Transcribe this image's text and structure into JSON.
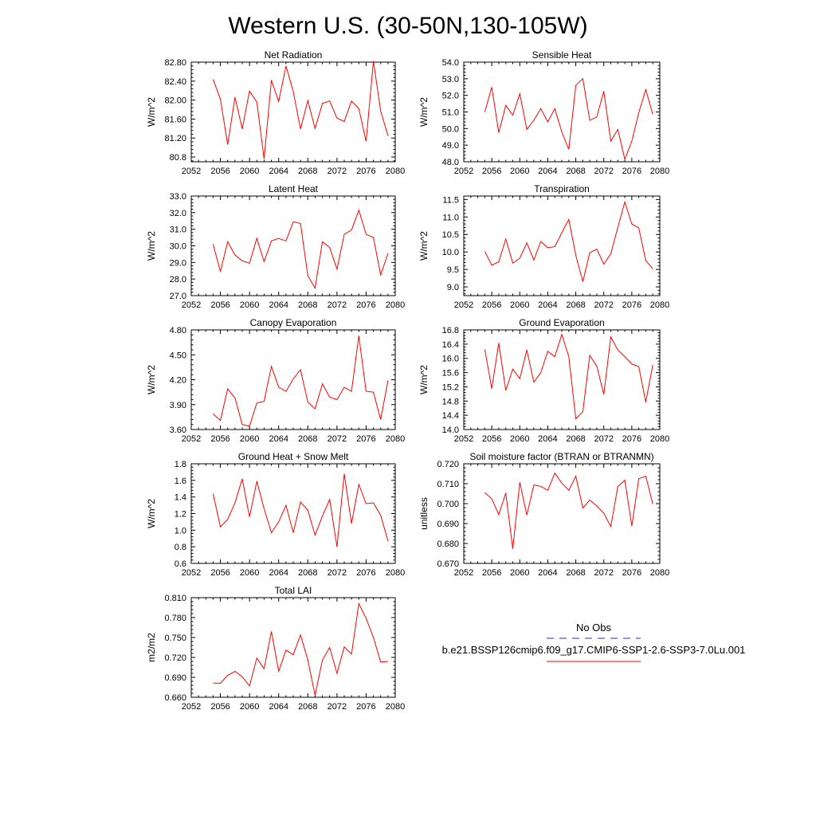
{
  "figure": {
    "title": "Western U.S. (30-50N,130-105W)",
    "line_color": "#ff0000",
    "obs_color": "#2b2bb0"
  },
  "legend": {
    "items": [
      {
        "label": "No Obs",
        "style": "dashed",
        "color": "#2b2bb0"
      },
      {
        "label": "b.e21.BSSP126cmip6.f09_g17.CMIP6-SSP1-2.6-SSP3-7.0Lu.001",
        "style": "solid",
        "color": "#ff0000"
      }
    ]
  },
  "chart_data": [
    {
      "type": "line",
      "title": "Net Radiation",
      "xlabel": "",
      "ylabel": "W/m^2",
      "xlim": [
        2052,
        2080
      ],
      "ylim": [
        80.7,
        82.8
      ],
      "xticks": [
        "2052",
        "2056",
        "2060",
        "2064",
        "2068",
        "2072",
        "2076",
        "2080"
      ],
      "yticks": [
        "80.8",
        "81.20",
        "81.60",
        "82.00",
        "82.40",
        "82.80"
      ],
      "series": [
        {
          "x": [
            2055,
            2056,
            2057,
            2058,
            2059,
            2060,
            2061,
            2062,
            2063,
            2064,
            2065,
            2066,
            2067,
            2068,
            2069,
            2070,
            2071,
            2072,
            2073,
            2074,
            2075,
            2076,
            2077,
            2078,
            2079
          ],
          "values": [
            82.44,
            82.02,
            81.06,
            82.06,
            81.39,
            82.19,
            81.96,
            80.76,
            82.42,
            81.97,
            82.72,
            82.18,
            81.39,
            81.99,
            81.4,
            81.93,
            81.98,
            81.62,
            81.55,
            81.98,
            81.82,
            81.13,
            82.82,
            81.77,
            81.25
          ]
        }
      ]
    },
    {
      "type": "line",
      "title": "Sensible Heat",
      "xlabel": "",
      "ylabel": "W/m^2",
      "xlim": [
        2052,
        2080
      ],
      "ylim": [
        48.0,
        54.0
      ],
      "xticks": [
        "2052",
        "2056",
        "2060",
        "2064",
        "2068",
        "2072",
        "2076",
        "2080"
      ],
      "yticks": [
        "48.0",
        "49.0",
        "50.0",
        "51.0",
        "52.0",
        "53.0",
        "54.0"
      ],
      "series": [
        {
          "x": [
            2055,
            2056,
            2057,
            2058,
            2059,
            2060,
            2061,
            2062,
            2063,
            2064,
            2065,
            2066,
            2067,
            2068,
            2069,
            2070,
            2071,
            2072,
            2073,
            2074,
            2075,
            2076,
            2077,
            2078,
            2079
          ],
          "values": [
            51.0,
            52.5,
            49.75,
            51.4,
            50.8,
            52.1,
            49.95,
            50.5,
            51.2,
            50.4,
            51.2,
            49.8,
            48.75,
            52.6,
            53.0,
            50.5,
            50.7,
            52.25,
            49.25,
            49.95,
            48.15,
            49.25,
            50.95,
            52.35,
            50.85
          ]
        }
      ]
    },
    {
      "type": "line",
      "title": "Latent Heat",
      "xlabel": "",
      "ylabel": "W/m^2",
      "xlim": [
        2052,
        2080
      ],
      "ylim": [
        27.0,
        33.0
      ],
      "xticks": [
        "2052",
        "2056",
        "2060",
        "2064",
        "2068",
        "2072",
        "2076",
        "2080"
      ],
      "yticks": [
        "27.0",
        "28.0",
        "29.0",
        "30.0",
        "31.0",
        "32.0",
        "33.0"
      ],
      "series": [
        {
          "x": [
            2055,
            2056,
            2057,
            2058,
            2059,
            2060,
            2061,
            2062,
            2063,
            2064,
            2065,
            2066,
            2067,
            2068,
            2069,
            2070,
            2071,
            2072,
            2073,
            2074,
            2075,
            2076,
            2077,
            2078,
            2079
          ],
          "values": [
            30.1,
            28.45,
            30.25,
            29.45,
            29.1,
            28.95,
            30.45,
            29.05,
            30.3,
            30.45,
            30.3,
            31.45,
            31.35,
            28.2,
            27.45,
            30.25,
            29.9,
            28.6,
            30.7,
            30.95,
            32.15,
            30.7,
            30.5,
            28.25,
            29.55
          ]
        }
      ]
    },
    {
      "type": "line",
      "title": "Transpiration",
      "xlabel": "",
      "ylabel": "W/m^2",
      "xlim": [
        2052,
        2080
      ],
      "ylim": [
        8.75,
        11.6
      ],
      "xticks": [
        "2052",
        "2056",
        "2060",
        "2064",
        "2068",
        "2072",
        "2076",
        "2080"
      ],
      "yticks": [
        "9.0",
        "9.5",
        "10.0",
        "10.5",
        "11.0",
        "11.5"
      ],
      "series": [
        {
          "x": [
            2055,
            2056,
            2057,
            2058,
            2059,
            2060,
            2061,
            2062,
            2063,
            2064,
            2065,
            2066,
            2067,
            2068,
            2069,
            2070,
            2071,
            2072,
            2073,
            2074,
            2075,
            2076,
            2077,
            2078,
            2079
          ],
          "values": [
            10.02,
            9.62,
            9.72,
            10.37,
            9.68,
            9.82,
            10.26,
            9.77,
            10.3,
            10.12,
            10.15,
            10.55,
            10.93,
            9.9,
            9.15,
            9.98,
            10.08,
            9.65,
            9.95,
            10.7,
            11.43,
            10.8,
            10.69,
            9.75,
            9.52
          ]
        }
      ]
    },
    {
      "type": "line",
      "title": "Canopy Evaporation",
      "xlabel": "",
      "ylabel": "W/m^2",
      "xlim": [
        2052,
        2080
      ],
      "ylim": [
        3.6,
        4.8
      ],
      "xticks": [
        "2052",
        "2056",
        "2060",
        "2064",
        "2068",
        "2072",
        "2076",
        "2080"
      ],
      "yticks": [
        "3.60",
        "3.90",
        "4.20",
        "4.50",
        "4.80"
      ],
      "series": [
        {
          "x": [
            2055,
            2056,
            2057,
            2058,
            2059,
            2060,
            2061,
            2062,
            2063,
            2064,
            2065,
            2066,
            2067,
            2068,
            2069,
            2070,
            2071,
            2072,
            2073,
            2074,
            2075,
            2076,
            2077,
            2078,
            2079
          ],
          "values": [
            3.79,
            3.71,
            4.09,
            3.98,
            3.66,
            3.64,
            3.92,
            3.94,
            4.36,
            4.11,
            4.06,
            4.21,
            4.32,
            3.93,
            3.85,
            4.15,
            3.99,
            3.96,
            4.11,
            4.06,
            4.73,
            4.06,
            4.05,
            3.72,
            4.19
          ]
        }
      ]
    },
    {
      "type": "line",
      "title": "Ground Evaporation",
      "xlabel": "",
      "ylabel": "W/m^2",
      "xlim": [
        2052,
        2080
      ],
      "ylim": [
        14.0,
        16.8
      ],
      "xticks": [
        "2052",
        "2056",
        "2060",
        "2064",
        "2068",
        "2072",
        "2076",
        "2080"
      ],
      "yticks": [
        "14.0",
        "14.4",
        "14.8",
        "15.2",
        "15.6",
        "16.0",
        "16.4",
        "16.8"
      ],
      "series": [
        {
          "x": [
            2055,
            2056,
            2057,
            2058,
            2059,
            2060,
            2061,
            2062,
            2063,
            2064,
            2065,
            2066,
            2067,
            2068,
            2069,
            2070,
            2071,
            2072,
            2073,
            2074,
            2075,
            2076,
            2077,
            2078,
            2079
          ],
          "values": [
            16.25,
            15.15,
            16.43,
            15.1,
            15.7,
            15.43,
            16.24,
            15.33,
            15.6,
            16.2,
            16.05,
            16.67,
            16.05,
            14.3,
            14.5,
            16.08,
            15.78,
            14.99,
            16.6,
            16.24,
            16.05,
            15.84,
            15.77,
            14.77,
            15.82
          ]
        }
      ]
    },
    {
      "type": "line",
      "title": "Ground Heat + Snow Melt",
      "xlabel": "",
      "ylabel": "W/m^2",
      "xlim": [
        2052,
        2080
      ],
      "ylim": [
        0.6,
        1.8
      ],
      "xticks": [
        "2052",
        "2056",
        "2060",
        "2064",
        "2068",
        "2072",
        "2076",
        "2080"
      ],
      "yticks": [
        "0.6",
        "0.8",
        "1.0",
        "1.2",
        "1.4",
        "1.6",
        "1.8"
      ],
      "series": [
        {
          "x": [
            2055,
            2056,
            2057,
            2058,
            2059,
            2060,
            2061,
            2062,
            2063,
            2064,
            2065,
            2066,
            2067,
            2068,
            2069,
            2070,
            2071,
            2072,
            2073,
            2074,
            2075,
            2076,
            2077,
            2078,
            2079
          ],
          "values": [
            1.44,
            1.04,
            1.13,
            1.33,
            1.62,
            1.16,
            1.59,
            1.26,
            0.97,
            1.1,
            1.3,
            0.97,
            1.34,
            1.24,
            0.94,
            1.17,
            1.37,
            0.8,
            1.68,
            1.08,
            1.55,
            1.32,
            1.33,
            1.18,
            0.87
          ]
        }
      ]
    },
    {
      "type": "line",
      "title": "Soil moisture factor (BTRAN or BTRANMN)",
      "xlabel": "",
      "ylabel": "unitless",
      "xlim": [
        2052,
        2080
      ],
      "ylim": [
        0.67,
        0.72
      ],
      "xticks": [
        "2052",
        "2056",
        "2060",
        "2064",
        "2068",
        "2072",
        "2076",
        "2080"
      ],
      "yticks": [
        "0.670",
        "0.680",
        "0.690",
        "0.700",
        "0.710",
        "0.720"
      ],
      "series": [
        {
          "x": [
            2055,
            2056,
            2057,
            2058,
            2059,
            2060,
            2061,
            2062,
            2063,
            2064,
            2065,
            2066,
            2067,
            2068,
            2069,
            2070,
            2071,
            2072,
            2073,
            2074,
            2075,
            2076,
            2077,
            2078,
            2079
          ],
          "values": [
            0.7055,
            0.7025,
            0.6945,
            0.7053,
            0.6773,
            0.7107,
            0.6943,
            0.7093,
            0.7087,
            0.7067,
            0.7153,
            0.7103,
            0.7067,
            0.7138,
            0.6978,
            0.7018,
            0.6988,
            0.6952,
            0.6885,
            0.7085,
            0.7118,
            0.6888,
            0.7125,
            0.7138,
            0.6998
          ]
        }
      ]
    },
    {
      "type": "line",
      "title": "Total LAI",
      "xlabel": "",
      "ylabel": "m2/m2",
      "xlim": [
        2052,
        2080
      ],
      "ylim": [
        0.66,
        0.81
      ],
      "xticks": [
        "2052",
        "2056",
        "2060",
        "2064",
        "2068",
        "2072",
        "2076",
        "2080"
      ],
      "yticks": [
        "0.660",
        "0.690",
        "0.720",
        "0.750",
        "0.780",
        "0.810"
      ],
      "series": [
        {
          "x": [
            2055,
            2056,
            2057,
            2058,
            2059,
            2060,
            2061,
            2062,
            2063,
            2064,
            2065,
            2066,
            2067,
            2068,
            2069,
            2070,
            2071,
            2072,
            2073,
            2074,
            2075,
            2076,
            2077,
            2078,
            2079
          ],
          "values": [
            0.6815,
            0.681,
            0.693,
            0.699,
            0.691,
            0.677,
            0.719,
            0.703,
            0.759,
            0.699,
            0.731,
            0.724,
            0.754,
            0.716,
            0.663,
            0.716,
            0.735,
            0.696,
            0.736,
            0.725,
            0.801,
            0.779,
            0.75,
            0.713,
            0.714
          ]
        }
      ]
    }
  ]
}
